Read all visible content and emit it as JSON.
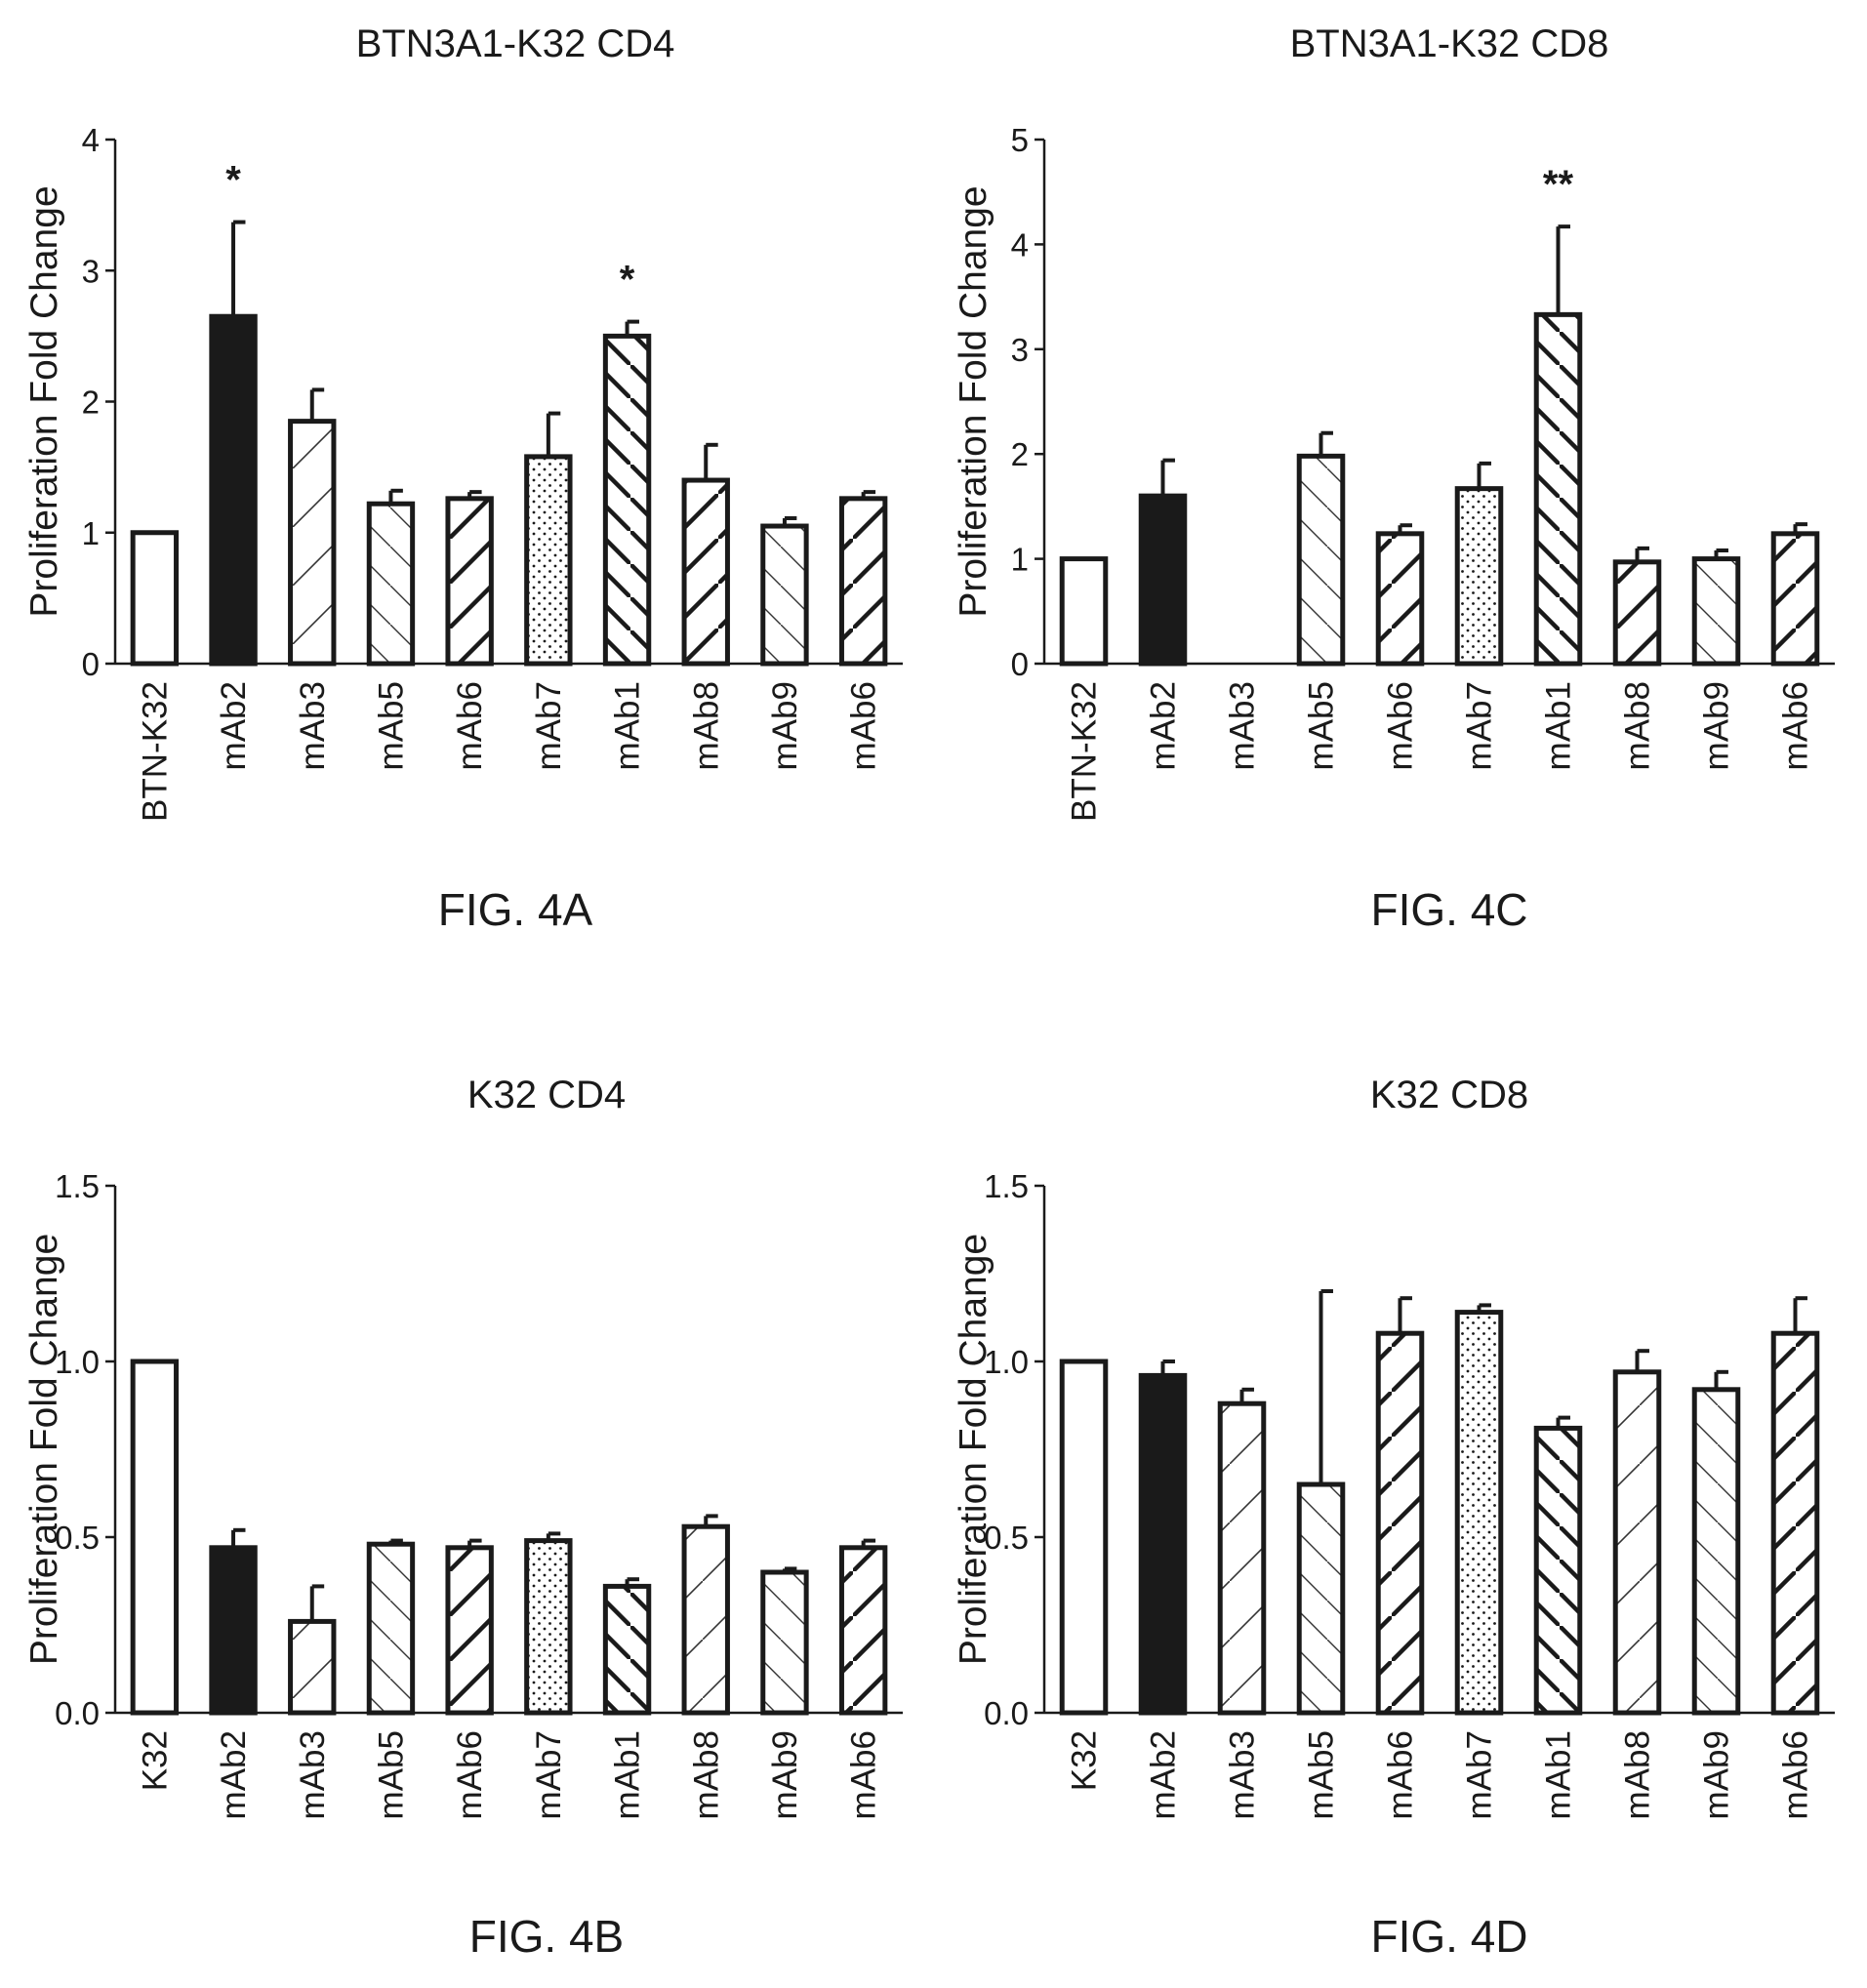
{
  "chart_data": [
    {
      "type": "bar",
      "title": "BTN3A1-K32 CD4",
      "caption": "FIG. 4A",
      "ylabel": "Proliferation Fold Change",
      "ylim": [
        0,
        4
      ],
      "yticks": [
        "0",
        "1",
        "2",
        "3",
        "4"
      ],
      "categories": [
        "BTN-K32",
        "mAb2",
        "mAb3",
        "mAb5",
        "mAb6",
        "mAb7",
        "mAb1",
        "mAb8",
        "mAb9",
        "mAb6"
      ],
      "values": [
        1.0,
        2.65,
        1.85,
        1.22,
        1.26,
        1.58,
        2.5,
        1.4,
        1.05,
        1.26
      ],
      "errors": [
        0,
        0.72,
        0.24,
        0.1,
        0.05,
        0.33,
        0.11,
        0.27,
        0.06,
        0.05
      ],
      "significance": [
        "",
        "*",
        "",
        "",
        "",
        "",
        "*",
        "",
        "",
        ""
      ],
      "fills": [
        "white",
        "solid",
        "hatch-thin-fwd",
        "hatch-thin-back",
        "hatch-thick-fwd",
        "dots",
        "hatch-thick-back",
        "hatch-thick-fwd",
        "hatch-thin-back",
        "hatch-thick-fwd"
      ]
    },
    {
      "type": "bar",
      "title": "BTN3A1-K32 CD8",
      "caption": "FIG. 4C",
      "ylabel": "Proliferation Fold Change",
      "ylim": [
        0,
        5
      ],
      "yticks": [
        "0",
        "1",
        "2",
        "3",
        "4",
        "5"
      ],
      "categories": [
        "BTN-K32",
        "mAb2",
        "mAb3",
        "mAb5",
        "mAb6",
        "mAb7",
        "mAb1",
        "mAb8",
        "mAb9",
        "mAb6"
      ],
      "values": [
        1.0,
        1.6,
        0,
        1.98,
        1.24,
        1.67,
        3.33,
        0.97,
        1.0,
        1.24
      ],
      "errors": [
        0,
        0.34,
        0,
        0.22,
        0.08,
        0.24,
        0.84,
        0.13,
        0.08,
        0.09
      ],
      "significance": [
        "",
        "",
        "",
        "",
        "",
        "",
        "**",
        "",
        "",
        ""
      ],
      "fills": [
        "white",
        "solid",
        "none",
        "hatch-thin-back",
        "hatch-thick-fwd",
        "dots",
        "hatch-thick-back",
        "hatch-thick-fwd",
        "hatch-thin-back",
        "hatch-thick-fwd"
      ]
    },
    {
      "type": "bar",
      "title": "K32 CD4",
      "caption": "FIG. 4B",
      "ylabel": "Proliferation Fold Change",
      "ylim": [
        0,
        1.5
      ],
      "yticks": [
        "0.0",
        "0.5",
        "1.0",
        "1.5"
      ],
      "categories": [
        "K32",
        "mAb2",
        "mAb3",
        "mAb5",
        "mAb6",
        "mAb7",
        "mAb1",
        "mAb8",
        "mAb9",
        "mAb6"
      ],
      "values": [
        1.0,
        0.47,
        0.26,
        0.48,
        0.47,
        0.49,
        0.36,
        0.53,
        0.4,
        0.47
      ],
      "errors": [
        0,
        0.05,
        0.1,
        0.01,
        0.02,
        0.02,
        0.02,
        0.03,
        0.01,
        0.02
      ],
      "significance": [
        "",
        "",
        "",
        "",
        "",
        "",
        "",
        "",
        "",
        ""
      ],
      "fills": [
        "white",
        "solid",
        "hatch-thin-fwd",
        "hatch-thin-back",
        "hatch-thick-fwd",
        "dots",
        "hatch-thick-back",
        "hatch-thin-fwd",
        "hatch-thin-back",
        "hatch-thick-fwd"
      ]
    },
    {
      "type": "bar",
      "title": "K32 CD8",
      "caption": "FIG. 4D",
      "ylabel": "Proliferation Fold Change",
      "ylim": [
        0,
        1.5
      ],
      "yticks": [
        "0.0",
        "0.5",
        "1.0",
        "1.5"
      ],
      "categories": [
        "K32",
        "mAb2",
        "mAb3",
        "mAb5",
        "mAb6",
        "mAb7",
        "mAb1",
        "mAb8",
        "mAb9",
        "mAb6"
      ],
      "values": [
        1.0,
        0.96,
        0.88,
        0.65,
        1.08,
        1.14,
        0.81,
        0.97,
        0.92,
        1.08
      ],
      "errors": [
        0,
        0.04,
        0.04,
        0.55,
        0.1,
        0.02,
        0.03,
        0.06,
        0.05,
        0.1
      ],
      "significance": [
        "",
        "",
        "",
        "",
        "",
        "",
        "",
        "",
        "",
        ""
      ],
      "fills": [
        "white",
        "solid",
        "hatch-thin-fwd",
        "hatch-thin-back",
        "hatch-thick-fwd",
        "dots",
        "hatch-thick-back",
        "hatch-thin-fwd",
        "hatch-thin-back",
        "hatch-thick-fwd"
      ]
    }
  ]
}
